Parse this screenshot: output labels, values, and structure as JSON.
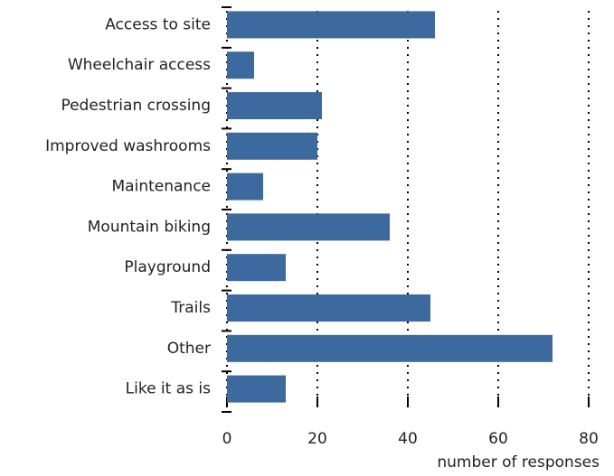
{
  "chart_data": {
    "type": "bar",
    "orientation": "horizontal",
    "categories": [
      "Access to site",
      "Wheelchair access",
      "Pedestrian crossing",
      "Improved washrooms",
      "Maintenance",
      "Mountain biking",
      "Playground",
      "Trails",
      "Other",
      "Like it as is"
    ],
    "values": [
      46,
      6,
      21,
      20,
      8,
      36,
      13,
      45,
      72,
      13
    ],
    "color": "#3d6a9e",
    "x_label": "number of responses",
    "xlim": [
      0,
      80
    ],
    "xticks": [
      0,
      20,
      40,
      60,
      80
    ],
    "grid": true
  }
}
